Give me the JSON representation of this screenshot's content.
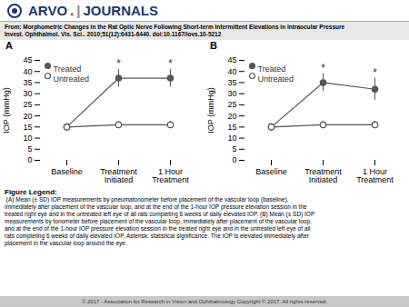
{
  "logo": [
    {
      "text": "ARVO",
      "color": "#1a3a6b"
    },
    {
      "text": ".",
      "color": "#cc0000"
    },
    {
      "text": "|",
      "color": "#888888"
    },
    {
      "text": "JOURNALS",
      "color": "#1a3a6b"
    }
  ],
  "title": "From: Morphometric Changes in the Rat Optic Nerve Following Short-term Intermittent Elevations in Intraocular Pressure",
  "subtitle": "Invest. Ophthalmol. Vis. Sci.. 2010;51(12):6431-6440. doi:10.1167/iovs.10-5212",
  "caption_title": "Figure Legend:",
  "caption": " (A) Mean (± SD) IOP measurements by pneumatonometer before placement of the vascular loop (baseline),\nimmediately after placement of the vascular loop, and at the end of the 1-hour IOP pressure elevation session in the\ntreated right eye and in the untreated left eye of all rats completing 6 weeks of daily elevated IOP. (B) Mean (± SD) IOP\nmeasurements by tonometer before placement of the vascular loop, immediately after placement of the vascular loop,\nand at the end of the 1-hour IOP pressure elevation session in the treated right eye and in the untreated left eye of all\nrats completing 6 weeks of daily elevated IOP. Asterisk: statistical significance. The IOP is elevated immediately after\nplacement in the vascular loop around the eye.",
  "footer": "© 2017 - Association for Research in Vision and Ophthalmology Copyright © 2017. All rights reserved.",
  "chart_data": [
    {
      "type": "line",
      "title": "A",
      "ylabel": "IOP (mmHg)",
      "categories": [
        "Baseline",
        "Treatment\nInitiated",
        "1 Hour\nTreatment"
      ],
      "series": [
        {
          "name": "Treated",
          "color": "#555555",
          "marker": "circle",
          "values": [
            15,
            37,
            37
          ],
          "errors": [
            1.5,
            4,
            4
          ]
        },
        {
          "name": "Untreated",
          "color": "#555555",
          "marker": "open-circle",
          "values": [
            15,
            16,
            16
          ],
          "errors": [
            1.5,
            1.5,
            1.5
          ]
        }
      ],
      "annotations": [
        {
          "text": "*",
          "x": "Treatment\nInitiated",
          "series": "Treated"
        },
        {
          "text": "*",
          "x": "1 Hour\nTreatment",
          "series": "Treated"
        }
      ],
      "ylim": [
        0,
        45
      ],
      "yticks": [
        0,
        5,
        10,
        15,
        20,
        25,
        30,
        35,
        40,
        45
      ],
      "grid": false,
      "legend": "upper left"
    },
    {
      "type": "line",
      "title": "B",
      "ylabel": "IOP (mmHg)",
      "categories": [
        "Baseline",
        "Treatment\nInitiated",
        "1 Hour\nTreatment"
      ],
      "series": [
        {
          "name": "Treated",
          "color": "#555555",
          "marker": "circle",
          "values": [
            15,
            35,
            32
          ],
          "errors": [
            1.5,
            4,
            5
          ]
        },
        {
          "name": "Untreated",
          "color": "#555555",
          "marker": "open-circle",
          "values": [
            15,
            16,
            16
          ],
          "errors": [
            1.5,
            1.5,
            1.5
          ]
        }
      ],
      "annotations": [
        {
          "text": "*",
          "x": "Treatment\nInitiated",
          "series": "Treated"
        },
        {
          "text": "*",
          "x": "1 Hour\nTreatment",
          "series": "Treated"
        }
      ],
      "ylim": [
        0,
        45
      ],
      "yticks": [
        0,
        5,
        10,
        15,
        20,
        25,
        30,
        35,
        40,
        45
      ],
      "grid": false,
      "legend": "upper left"
    }
  ]
}
